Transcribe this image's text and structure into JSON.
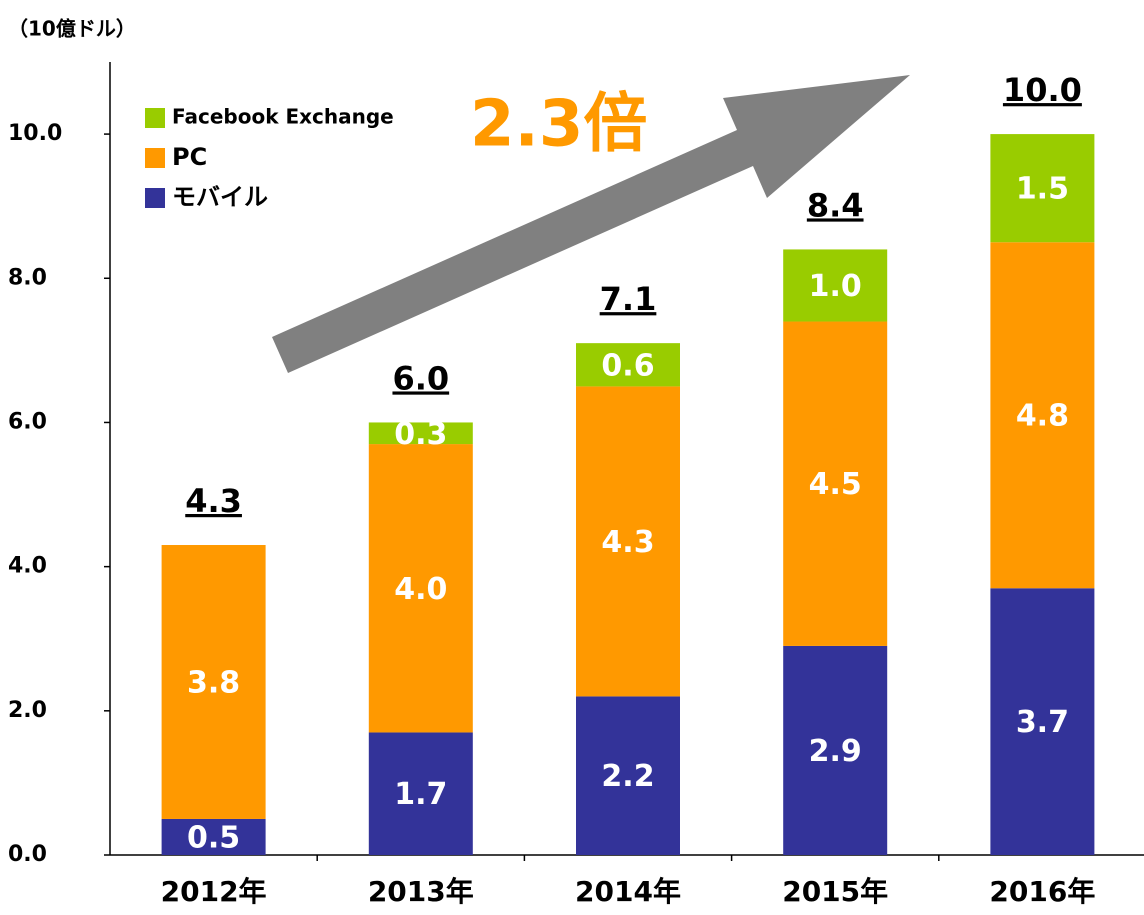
{
  "chart_data": {
    "type": "stacked_bar",
    "y_axis_label": "（10億ドル）",
    "annotation": "2.3倍",
    "categories": [
      "2012年",
      "2013年",
      "2014年",
      "2015年",
      "2016年"
    ],
    "series": [
      {
        "name": "モバイル",
        "color": "#333399",
        "values": [
          0.5,
          1.7,
          2.2,
          2.9,
          3.7
        ],
        "value_labels": [
          "0.5",
          "1.7",
          "2.2",
          "2.9",
          "3.7"
        ]
      },
      {
        "name": "PC",
        "color": "#ff9900",
        "values": [
          3.8,
          4.0,
          4.3,
          4.5,
          4.8
        ],
        "value_labels": [
          "3.8",
          "4.0",
          "4.3",
          "4.5",
          "4.8"
        ]
      },
      {
        "name": "Facebook Exchange",
        "color": "#99cc00",
        "values": [
          null,
          0.3,
          0.6,
          1.0,
          1.5
        ],
        "value_labels": [
          null,
          "0.3",
          "0.6",
          "1.0",
          "1.5"
        ]
      }
    ],
    "totals": {
      "values": [
        4.3,
        6,
        7.1,
        8.4,
        10
      ],
      "value_labels": [
        "4.3",
        "6.0",
        "7.1",
        "8.4",
        "10.0"
      ]
    },
    "ylim": [
      0,
      11
    ],
    "yticks": [
      {
        "value": 0,
        "label": "0.0"
      },
      {
        "value": 2,
        "label": "2.0"
      },
      {
        "value": 4,
        "label": "4.0"
      },
      {
        "value": 6,
        "label": "6.0"
      },
      {
        "value": 8,
        "label": "8.0"
      },
      {
        "value": 10,
        "label": "10.0"
      }
    ],
    "legend": "upper left"
  }
}
